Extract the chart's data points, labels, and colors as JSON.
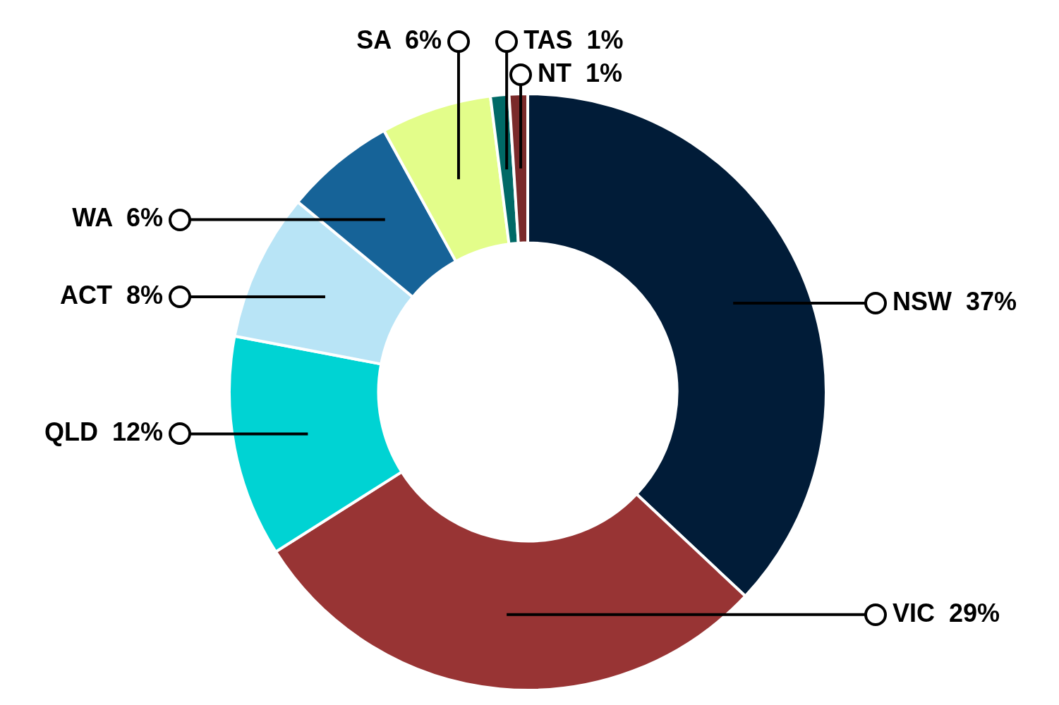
{
  "chart_data": {
    "type": "donut",
    "categories": [
      "NSW",
      "VIC",
      "QLD",
      "ACT",
      "WA",
      "SA",
      "TAS",
      "NT"
    ],
    "values": [
      37,
      29,
      12,
      8,
      6,
      6,
      1,
      1
    ],
    "value_labels": [
      "37%",
      "29%",
      "12%",
      "8%",
      "6%",
      "6%",
      "1%",
      "1%"
    ],
    "colors": [
      "#011c38",
      "#983434",
      "#00d3d3",
      "#b8e4f6",
      "#166398",
      "#e3fd8a",
      "#006966",
      "#7a2a2a"
    ],
    "legend": false
  }
}
